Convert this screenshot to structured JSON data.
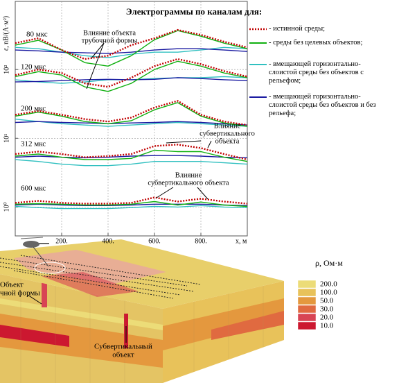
{
  "chart_data": {
    "type": "line",
    "title": "Электрограммы по каналам для:",
    "x_label": "x, м",
    "y_label": "ε, nВ/(А·м²)",
    "y_scale": "log",
    "grid": true,
    "xlim": [
      0,
      1000
    ],
    "ylim": [
      0.38,
      980
    ],
    "xticks": [
      {
        "value": 200,
        "label": "200."
      },
      {
        "value": 400,
        "label": "400."
      },
      {
        "value": 600,
        "label": "600."
      },
      {
        "value": 800,
        "label": "800."
      }
    ],
    "yticks": [
      {
        "value": 1,
        "label": "10⁰"
      },
      {
        "value": 10,
        "label": "10¹"
      },
      {
        "value": 100,
        "label": "10²"
      }
    ],
    "channels": [
      "80 мкс",
      "120 мкс",
      "200 мкс",
      "312 мкс",
      "600 мкс"
    ],
    "x": [
      0,
      100,
      200,
      300,
      400,
      500,
      600,
      700,
      800,
      900,
      1000
    ],
    "series": [
      {
        "name": "- истинной среды;",
        "color": "#c00000",
        "dash": "dotted",
        "values": [
          [
            242,
            285,
            192,
            142,
            159,
            226,
            285,
            377,
            320,
            254,
            210
          ],
          [
            83,
            100,
            89,
            63,
            56,
            76,
            112,
            142,
            120,
            95,
            79
          ],
          [
            22,
            25,
            22,
            19,
            17.5,
            20,
            28,
            35,
            22,
            17.5,
            15.6
          ],
          [
            5.9,
            6.4,
            5.9,
            5.3,
            5.5,
            5.9,
            7.7,
            8.1,
            7.2,
            5.9,
            4.9
          ],
          [
            1.15,
            1.23,
            1.15,
            1.12,
            1.12,
            1.15,
            1.38,
            1.2,
            1.32,
            1.2,
            1.12
          ]
        ]
      },
      {
        "name": "- среды без целевых объектов;",
        "color": "#10b010",
        "values": [
          [
            226,
            266,
            192,
            126,
            112,
            159,
            272,
            368,
            305,
            242,
            201
          ],
          [
            79,
            93,
            83,
            56,
            48,
            63,
            100,
            132,
            112,
            89,
            76
          ],
          [
            21,
            24,
            21,
            17.5,
            16.3,
            18,
            26,
            33,
            21,
            16.7,
            14.9
          ],
          [
            5.5,
            5.9,
            5.3,
            4.9,
            4.9,
            5.1,
            6.7,
            6.4,
            6.4,
            5.3,
            4.6
          ],
          [
            1.1,
            1.12,
            1.1,
            1.07,
            1.07,
            1.1,
            1.2,
            1.07,
            1.18,
            1.07,
            1.02
          ]
        ]
      },
      {
        "name": "- вмещающей горизонтально-слоистой среды без объектов с рельефом;",
        "color": "#30c0c0",
        "values": [
          [
            210,
            201,
            179,
            159,
            149,
            167,
            179,
            179,
            192,
            210,
            201
          ],
          [
            71,
            66,
            63,
            66,
            71,
            71,
            74,
            76,
            76,
            79,
            76
          ],
          [
            19,
            17.5,
            16.3,
            15.6,
            14.9,
            15.6,
            16.3,
            17,
            16.3,
            15.6,
            14.9
          ],
          [
            4.9,
            4.6,
            4.2,
            4.0,
            4.0,
            4.2,
            4.6,
            4.6,
            4.6,
            4.4,
            4.2
          ],
          [
            1.02,
            0.98,
            0.95,
            0.95,
            0.95,
            0.98,
            1.02,
            1.0,
            1.05,
            1.0,
            0.98
          ]
        ]
      },
      {
        "name": "- вмещающей горизонтально-слоистой среды без объектов и без рельефа;",
        "color": "#1818a0",
        "values": [
          [
            192,
            187,
            179,
            175,
            171,
            179,
            192,
            201,
            201,
            192,
            183
          ],
          [
            66,
            67,
            69,
            71,
            72,
            71,
            72,
            76,
            74,
            71,
            69
          ],
          [
            17,
            17.5,
            17,
            16.7,
            16.3,
            16.7,
            17,
            17.5,
            17,
            16.3,
            15.6
          ],
          [
            5.3,
            5.5,
            5.3,
            5.2,
            5.3,
            5.5,
            5.6,
            5.6,
            5.5,
            5.3,
            5.2
          ],
          [
            1.07,
            1.1,
            1.07,
            1.05,
            1.05,
            1.07,
            1.1,
            1.1,
            1.1,
            1.07,
            1.05
          ]
        ]
      }
    ],
    "annotations": [
      {
        "lines": [
          "Влияние объекта",
          "трубочной формы"
        ]
      },
      {
        "lines": [
          "Влияние",
          "субвертикального",
          "объекта"
        ]
      },
      {
        "lines": [
          "Влияние",
          "субвертикального объекта"
        ]
      }
    ]
  },
  "model": {
    "colorbar_title": "ρ, Ом·м",
    "colorbar": [
      {
        "value": 200,
        "label": "200.0",
        "color": "#ecdc78"
      },
      {
        "value": 100,
        "label": "100.0",
        "color": "#e8c25a"
      },
      {
        "value": 50,
        "label": "50.0",
        "color": "#e4983e"
      },
      {
        "value": 30,
        "label": "30.0",
        "color": "#e06a40"
      },
      {
        "value": 20,
        "label": "20.0",
        "color": "#d84454"
      },
      {
        "value": 10,
        "label": "10.0",
        "color": "#cc1830"
      }
    ],
    "labels": [
      {
        "lines": [
          "Объект",
          "чной формы"
        ]
      },
      {
        "lines": [
          "Субвертикальный",
          "объект"
        ]
      }
    ]
  }
}
